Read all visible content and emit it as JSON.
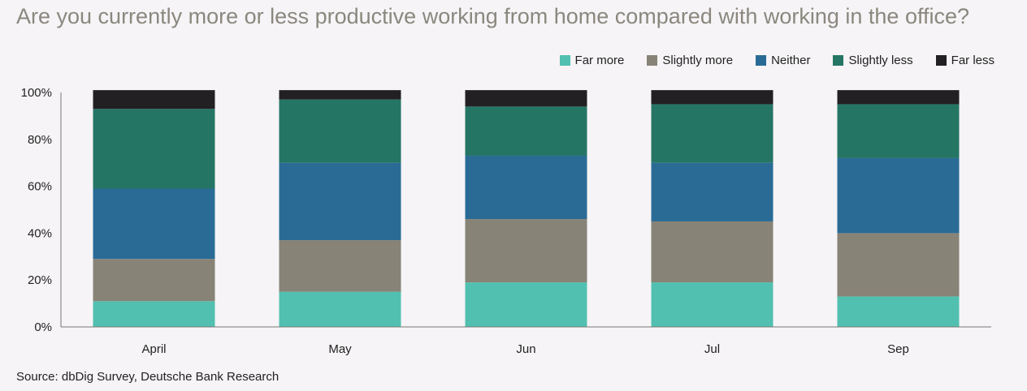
{
  "chart_data": {
    "type": "bar",
    "stacked": true,
    "title": "Are you currently more or less productive working from home compared with working in the office?",
    "categories": [
      "April",
      "May",
      "Jun",
      "Jul",
      "Sep"
    ],
    "series": [
      {
        "name": "Far more",
        "color": "#52c0b0",
        "values": [
          11,
          15,
          19,
          19,
          13
        ]
      },
      {
        "name": "Slightly more",
        "color": "#878376",
        "values": [
          18,
          22,
          27,
          26,
          27
        ]
      },
      {
        "name": "Neither",
        "color": "#2a6b96",
        "values": [
          30,
          33,
          27,
          25,
          32
        ]
      },
      {
        "name": "Slightly less",
        "color": "#257565",
        "values": [
          34,
          27,
          21,
          25,
          23
        ]
      },
      {
        "name": "Far less",
        "color": "#222023",
        "values": [
          8,
          4,
          7,
          6,
          6
        ]
      }
    ],
    "ylim": [
      0,
      100
    ],
    "yticks": [
      0,
      20,
      40,
      60,
      80,
      100
    ],
    "ytick_labels": [
      "0%",
      "20%",
      "40%",
      "60%",
      "80%",
      "100%"
    ],
    "grid": false,
    "legend_position": "top-right"
  },
  "source": "Source: dbDig Survey, Deutsche Bank Research"
}
